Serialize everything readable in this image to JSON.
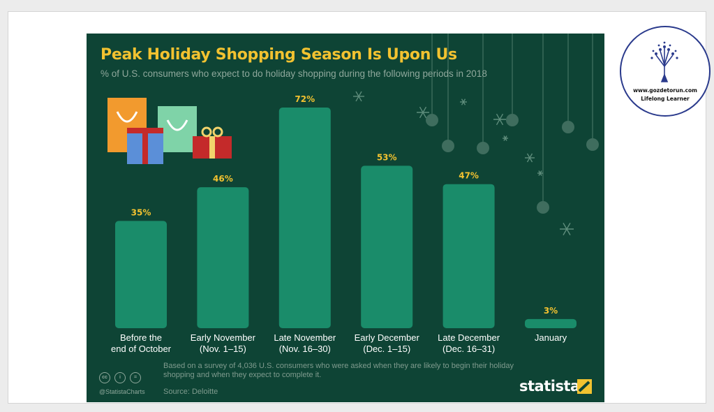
{
  "slide": {
    "logo": {
      "url_text": "www.gozdetorun.com",
      "tagline": "Lifelong Learner"
    }
  },
  "infographic": {
    "footnote": "Based on a survey of 4,036 U.S. consumers who were asked when they are likely to begin their holiday shopping and when they expect to complete it.",
    "source": "Source: Deloitte",
    "handle": "@StatistaCharts",
    "brand": "statista",
    "license_icons": [
      "cc",
      "i",
      "="
    ]
  },
  "colors": {
    "background": "#0e4435",
    "bar": "#1a8c6a",
    "accent": "#f2c230",
    "label": "#ffffff"
  },
  "chart_data": {
    "type": "bar",
    "title": "Peak Holiday Shopping Season Is Upon Us",
    "subtitle": "% of U.S. consumers who expect to do holiday shopping during the following periods in 2018",
    "categories": [
      [
        "Before the",
        "end of October"
      ],
      [
        "Early November",
        "(Nov. 1–15)"
      ],
      [
        "Late November",
        "(Nov. 16–30)"
      ],
      [
        "Early December",
        "(Dec. 1–15)"
      ],
      [
        "Late December",
        "(Dec. 16–31)"
      ],
      [
        "January"
      ]
    ],
    "values": [
      35,
      46,
      72,
      53,
      47,
      3
    ],
    "value_suffix": "%",
    "ylim": [
      0,
      72
    ],
    "grid": false,
    "legend": "none"
  }
}
